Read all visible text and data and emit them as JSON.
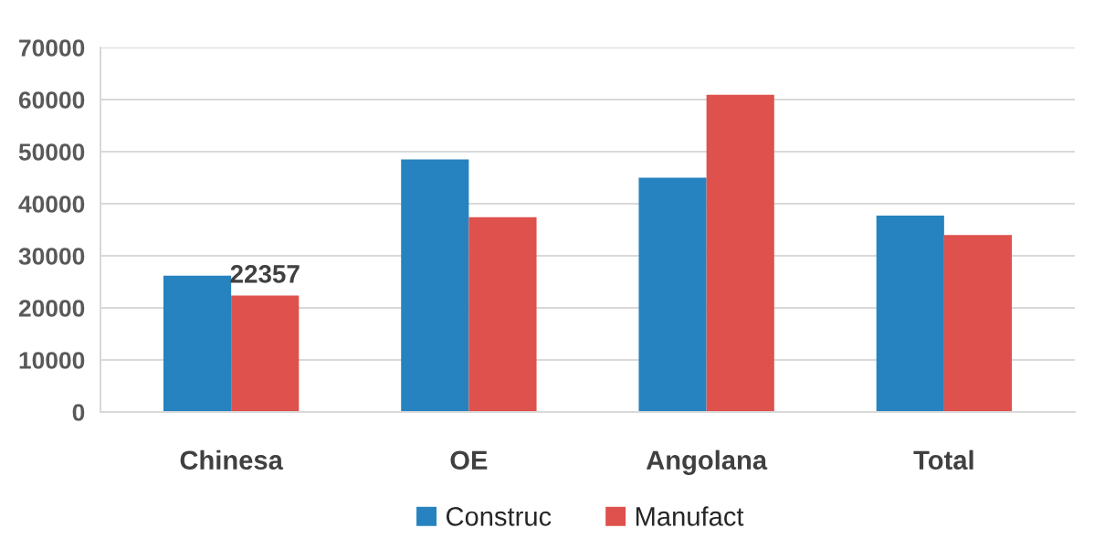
{
  "chart_data": {
    "type": "bar",
    "categories": [
      "Chinesa",
      "OE",
      "Angolana",
      "Total"
    ],
    "series": [
      {
        "name": "Construc",
        "color": "#2683c0",
        "values": [
          26200,
          48500,
          45000,
          37700
        ]
      },
      {
        "name": "Manufact",
        "color": "#de514c",
        "values": [
          22357,
          37400,
          60900,
          34000
        ],
        "value_labels": [
          "22357",
          null,
          null,
          null
        ]
      }
    ],
    "ylim": [
      0,
      70000
    ],
    "yticks": [
      0,
      10000,
      20000,
      30000,
      40000,
      50000,
      60000,
      70000
    ],
    "grid": "y",
    "legend": "bottom"
  }
}
